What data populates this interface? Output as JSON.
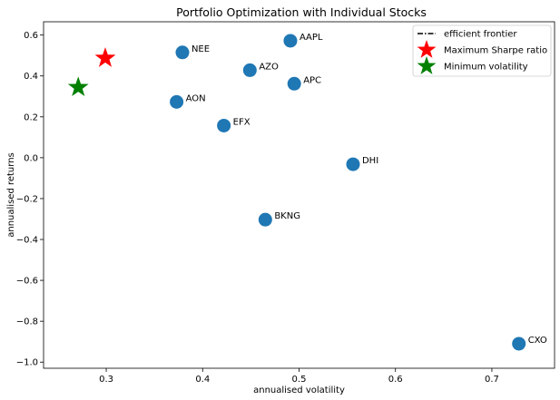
{
  "chart_data": {
    "type": "scatter",
    "title": "Portfolio Optimization with Individual Stocks",
    "xlabel": "annualised volatility",
    "ylabel": "annualised returns",
    "xlim": [
      0.235,
      0.765
    ],
    "ylim": [
      -1.03,
      0.665
    ],
    "xticks": [
      0.3,
      0.4,
      0.5,
      0.6,
      0.7
    ],
    "xtick_labels": [
      "0.3",
      "0.4",
      "0.5",
      "0.6",
      "0.7"
    ],
    "yticks": [
      0.6,
      0.4,
      0.2,
      0.0,
      -0.2,
      -0.4,
      -0.6,
      -0.8,
      -1.0
    ],
    "ytick_labels": [
      "0.6",
      "0.4",
      "0.2",
      "0.0",
      "−0.2",
      "−0.4",
      "−0.6",
      "−0.8",
      "−1.0"
    ],
    "grid": false,
    "legend_position": "top-right",
    "points": [
      {
        "label": "NEE",
        "x": 0.379,
        "y": 0.515
      },
      {
        "label": "AAPL",
        "x": 0.491,
        "y": 0.572
      },
      {
        "label": "AZO",
        "x": 0.449,
        "y": 0.428
      },
      {
        "label": "APC",
        "x": 0.495,
        "y": 0.362
      },
      {
        "label": "AON",
        "x": 0.373,
        "y": 0.273
      },
      {
        "label": "EFX",
        "x": 0.422,
        "y": 0.157
      },
      {
        "label": "DHI",
        "x": 0.556,
        "y": -0.032
      },
      {
        "label": "BKNG",
        "x": 0.465,
        "y": -0.303
      },
      {
        "label": "CXO",
        "x": 0.728,
        "y": -0.91
      }
    ],
    "point_color": "#1f77b4",
    "max_sharpe": {
      "label": "Maximum Sharpe ratio",
      "x": 0.299,
      "y": 0.487,
      "color": "#ff0000"
    },
    "min_volatility": {
      "label": "Minimum volatility",
      "x": 0.271,
      "y": 0.344,
      "color": "#008000"
    },
    "legend": [
      {
        "label": "efficient frontier",
        "kind": "dashdot-line",
        "color": "#000000"
      },
      {
        "label": "Maximum Sharpe ratio",
        "kind": "star",
        "color": "#ff0000"
      },
      {
        "label": "Minimum volatility",
        "kind": "star",
        "color": "#008000"
      }
    ]
  }
}
